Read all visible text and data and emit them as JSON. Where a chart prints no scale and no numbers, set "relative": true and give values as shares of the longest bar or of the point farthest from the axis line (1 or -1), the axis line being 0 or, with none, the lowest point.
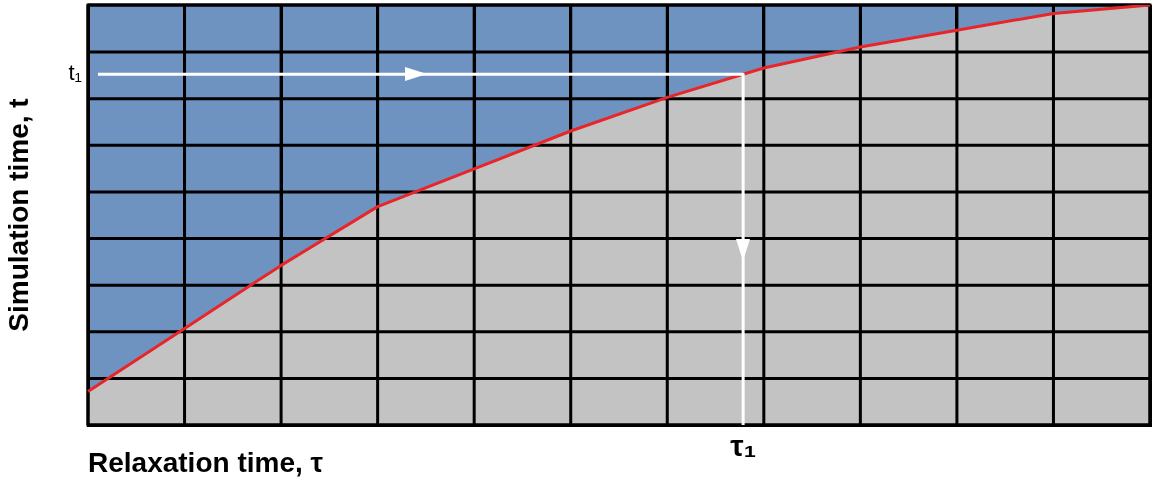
{
  "chart_data": {
    "type": "area",
    "relative": true,
    "xlabel": "Relaxation time, τ",
    "ylabel": "Simulation time, t",
    "categories": [
      null,
      null,
      null,
      null,
      null,
      null,
      null,
      null,
      null,
      null,
      null,
      null
    ],
    "series": [
      {
        "color": "#e8262a",
        "values": [
          0.08,
          0.23,
          0.38,
          0.52,
          0.61,
          0.7,
          0.78,
          0.85,
          0.9,
          0.94,
          0.98,
          1
        ]
      }
    ],
    "ref_lines": [
      {
        "axis": "y",
        "value": 0.835,
        "label": "t₁",
        "color": "#ffffff"
      }
    ],
    "annotations": [
      "τ₁"
    ],
    "grid": true,
    "legend": false,
    "marker": "none",
    "line_style": "solid"
  }
}
